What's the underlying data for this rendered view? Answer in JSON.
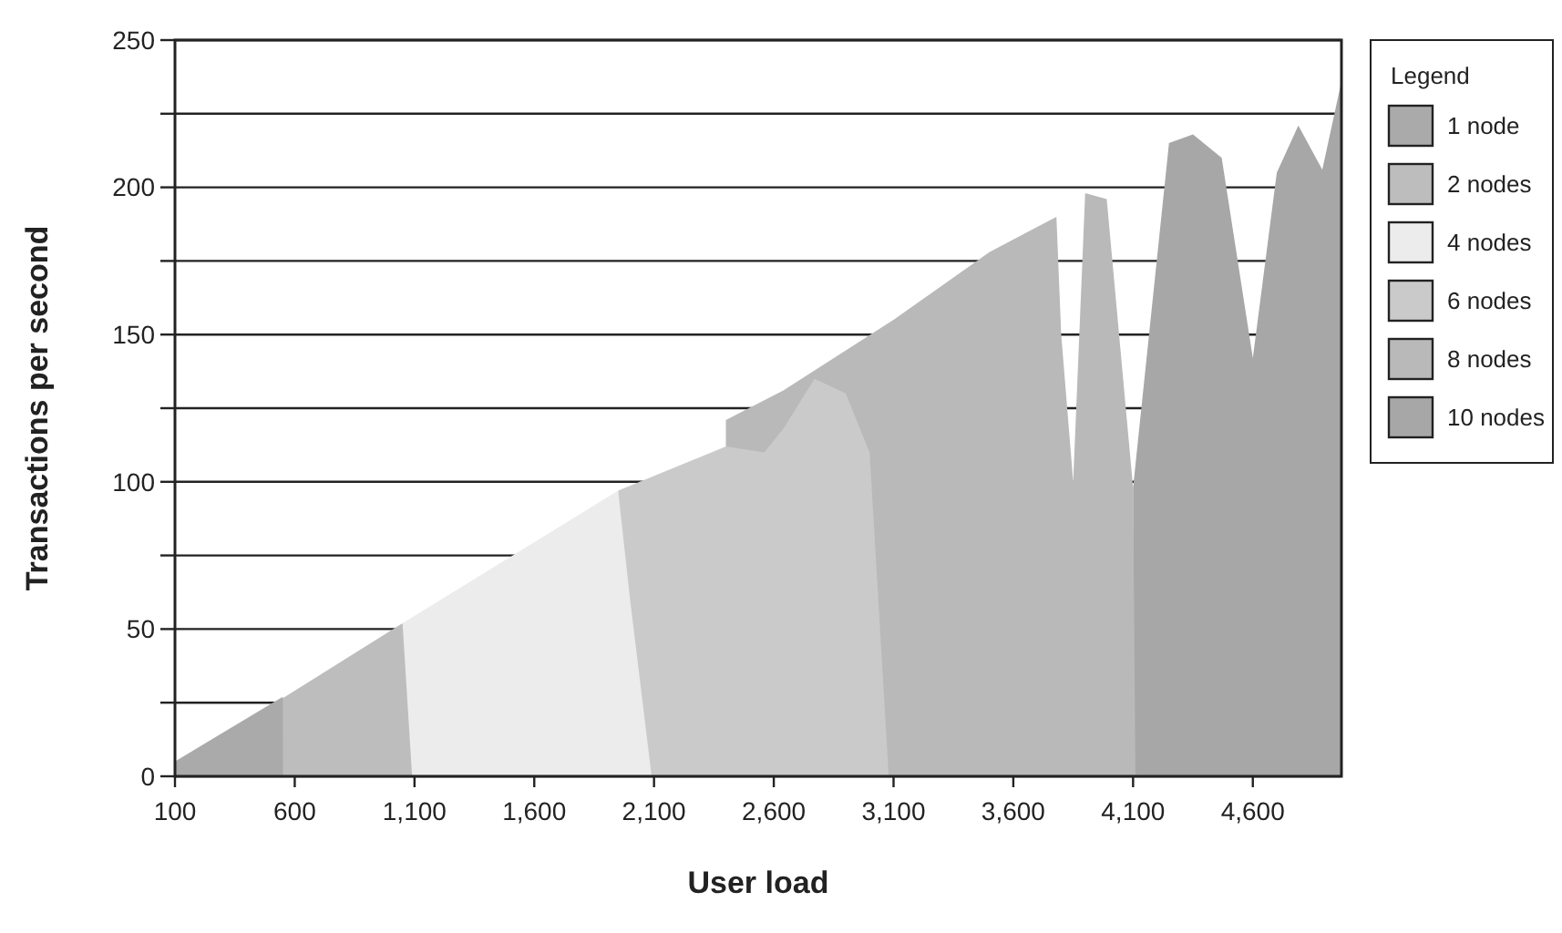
{
  "chart_data": {
    "type": "area",
    "xlabel": "User load",
    "ylabel": "Transactions per second",
    "legend_title": "Legend",
    "legend": "right",
    "grid": "y",
    "xlim": [
      100,
      4970
    ],
    "xticks": [
      {
        "value": 100,
        "label": "100"
      },
      {
        "value": 600,
        "label": "600"
      },
      {
        "value": 1100,
        "label": "1,100"
      },
      {
        "value": 1600,
        "label": "1,600"
      },
      {
        "value": 2100,
        "label": "2,100"
      },
      {
        "value": 2600,
        "label": "2,600"
      },
      {
        "value": 3100,
        "label": "3,100"
      },
      {
        "value": 3600,
        "label": "3,600"
      },
      {
        "value": 4100,
        "label": "4,100"
      },
      {
        "value": 4600,
        "label": "4,600"
      }
    ],
    "ylim": [
      0,
      250
    ],
    "yticks": [
      0,
      {
        "value": 25,
        "label": null
      },
      50,
      {
        "value": 75,
        "label": null
      },
      100,
      {
        "value": 125,
        "label": null
      },
      150,
      {
        "value": 175,
        "label": null
      },
      200,
      {
        "value": 225,
        "label": null
      },
      250
    ],
    "series": [
      {
        "name": "1 node",
        "color": "#a9aaa9",
        "x": [
          100,
          550,
          551
        ],
        "values": [
          5,
          27,
          0
        ]
      },
      {
        "name": "2 nodes",
        "color": "#bdbdbd",
        "x": [
          540,
          1050,
          1090
        ],
        "values": [
          26,
          52,
          0
        ]
      },
      {
        "name": "4 nodes",
        "color": "#ececec",
        "x": [
          1050,
          1950,
          2000,
          2090
        ],
        "values": [
          52,
          97,
          60,
          0
        ]
      },
      {
        "name": "6 nodes",
        "color": "#cacaca",
        "x": [
          1950,
          2400,
          2560,
          2640,
          2770,
          2900,
          3000,
          3080
        ],
        "values": [
          97,
          112,
          110,
          118,
          135,
          130,
          110,
          0
        ]
      },
      {
        "name": "8 nodes",
        "color": "#b9b9b9",
        "x": [
          2400,
          2640,
          3100,
          3500,
          3780,
          3800,
          3850,
          3900,
          3990,
          4100,
          4110
        ],
        "values": [
          121,
          131,
          155,
          178,
          190,
          150,
          100,
          198,
          196,
          98,
          0
        ]
      },
      {
        "name": "10 nodes",
        "color": "#a6a7a6",
        "x": [
          4100,
          4250,
          4350,
          4470,
          4600,
          4700,
          4790,
          4890,
          4970
        ],
        "values": [
          98,
          215,
          218,
          210,
          142,
          205,
          221,
          206,
          236
        ]
      }
    ]
  }
}
